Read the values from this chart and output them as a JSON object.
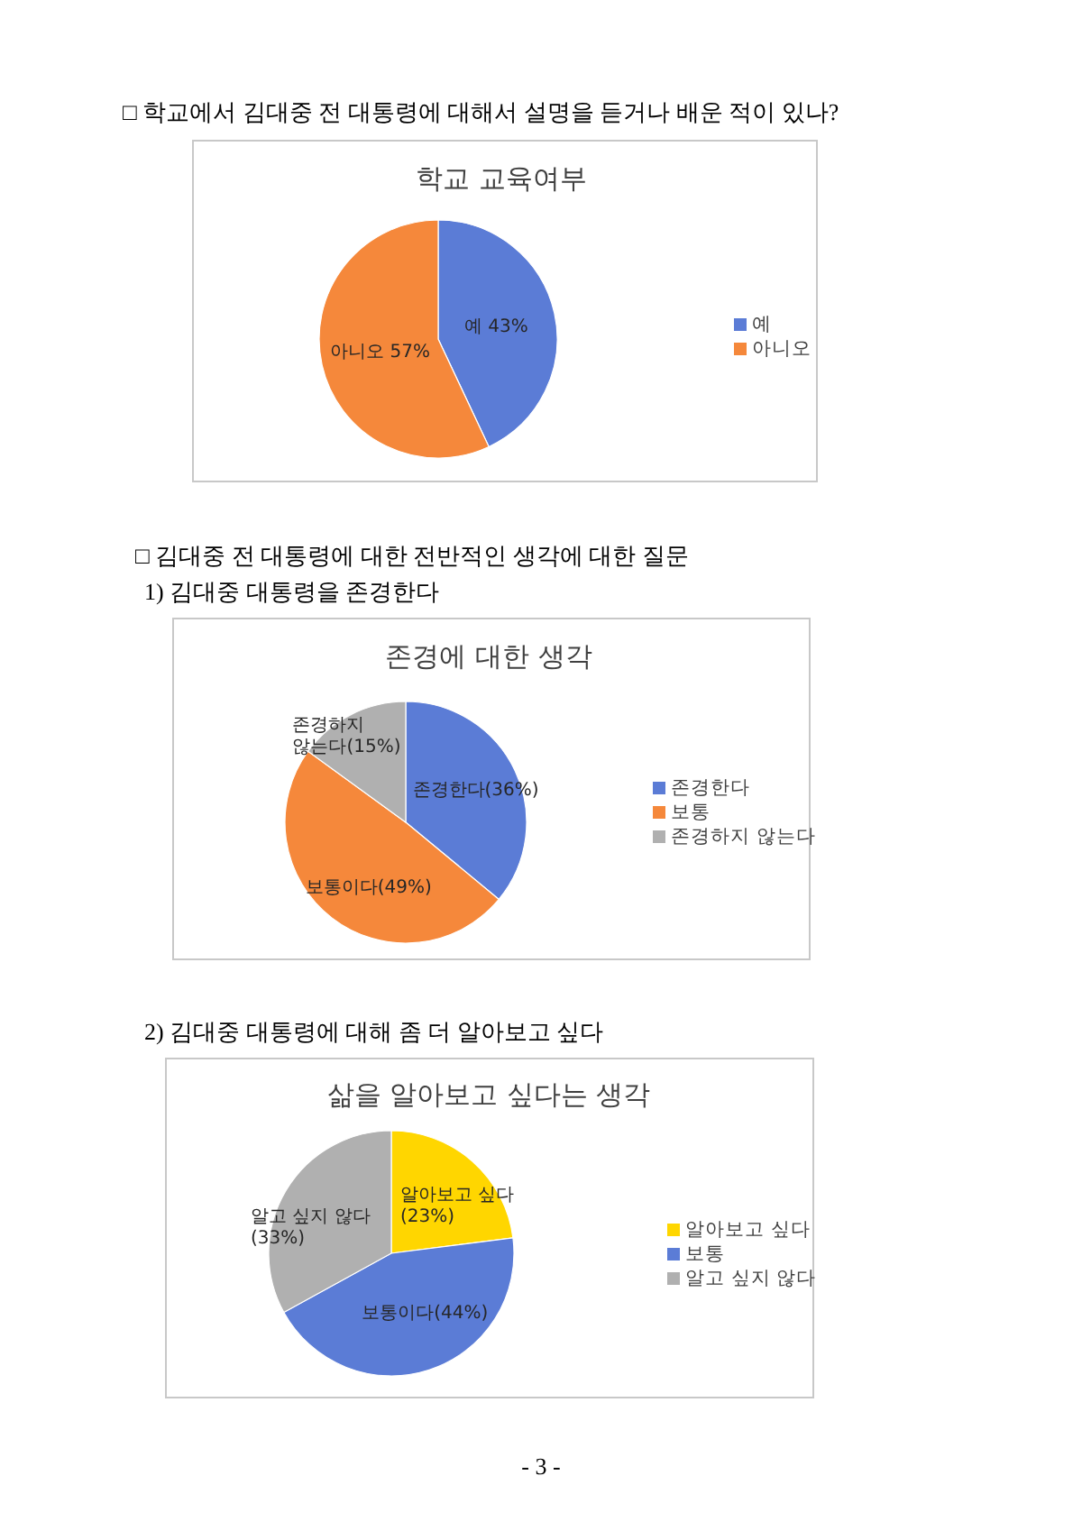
{
  "chart_data": [
    {
      "type": "pie",
      "title": "학교 교육여부",
      "annotations": [
        "□ 학교에서 김대중 전 대통령에 대해서 설명을 듣거나 배운 적이 있나?"
      ],
      "categories": [
        "예",
        "아니오"
      ],
      "values": [
        43,
        57
      ],
      "colors": [
        "#5b7cd6",
        "#f5883b"
      ],
      "value_labels": [
        "예 43%",
        "아니오 57%"
      ],
      "legend": "right"
    },
    {
      "type": "pie",
      "title": "존경에 대한 생각",
      "annotations": [
        "□ 김대중 전 대통령에 대한 전반적인 생각에 대한 질문",
        "1) 김대중 대통령을 존경한다"
      ],
      "categories": [
        "존경한다",
        "보통",
        "존경하지 않는다"
      ],
      "values": [
        36,
        49,
        15
      ],
      "colors": [
        "#5b7cd6",
        "#f5883b",
        "#b0b0b0"
      ],
      "value_labels": [
        "존경한다(36%)",
        "보통이다(49%)",
        "존경하지\n않는다(15%)"
      ],
      "legend": "right"
    },
    {
      "type": "pie",
      "title": "삶을 알아보고 싶다는 생각",
      "annotations": [
        "2) 김대중 대통령에 대해 좀 더 알아보고 싶다",
        "- 3 -"
      ],
      "categories": [
        "알아보고 싶다",
        "보통",
        "알고 싶지 않다"
      ],
      "values": [
        23,
        44,
        33
      ],
      "colors": [
        "#ffd600",
        "#5b7cd6",
        "#b0b0b0"
      ],
      "value_labels": [
        "알아보고 싶다\n(23%)",
        "보통이다(44%)",
        "알고 싶지 않다\n(33%)"
      ],
      "legend": "right"
    }
  ]
}
